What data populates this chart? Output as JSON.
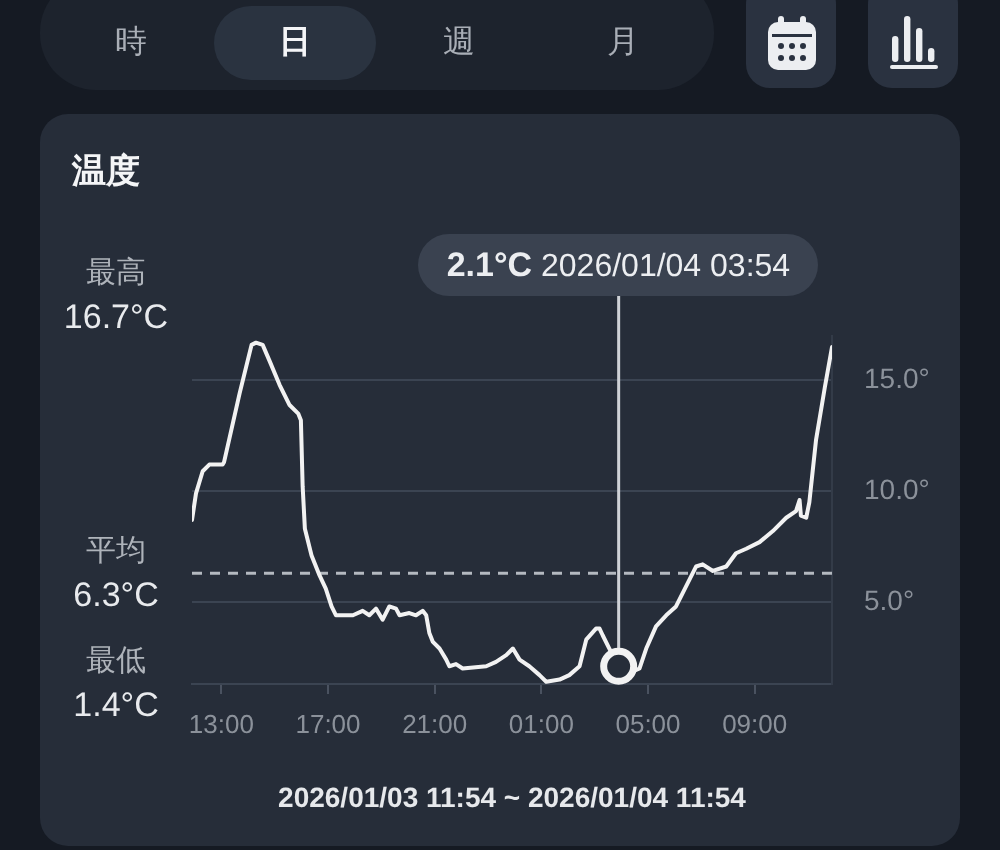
{
  "chart_data": {
    "type": "line",
    "title": "温度",
    "xlabel": "2026/01/03 11:54 ~ 2026/01/04 11:54",
    "x": [
      "2026-01-03T11:54",
      "2026-01-03T12:03",
      "2026-01-03T12:18",
      "2026-01-03T12:33",
      "2026-01-03T13:03",
      "2026-01-03T13:06",
      "2026-01-03T13:41",
      "2026-01-03T14:08",
      "2026-01-03T14:18",
      "2026-01-03T14:33",
      "2026-01-03T14:48",
      "2026-01-03T15:11",
      "2026-01-03T15:33",
      "2026-01-03T15:53",
      "2026-01-03T15:59",
      "2026-01-03T16:03",
      "2026-01-03T16:08",
      "2026-01-03T16:23",
      "2026-01-03T16:41",
      "2026-01-03T16:55",
      "2026-01-03T17:08",
      "2026-01-03T17:18",
      "2026-01-03T17:56",
      "2026-01-03T18:18",
      "2026-01-03T18:33",
      "2026-01-03T18:48",
      "2026-01-03T19:03",
      "2026-01-03T19:18",
      "2026-01-03T19:33",
      "2026-01-03T19:41",
      "2026-01-03T20:03",
      "2026-01-03T20:18",
      "2026-01-03T20:33",
      "2026-01-03T20:41",
      "2026-01-03T20:48",
      "2026-01-03T20:56",
      "2026-01-03T21:11",
      "2026-01-03T21:26",
      "2026-01-03T21:33",
      "2026-01-03T21:48",
      "2026-01-03T22:03",
      "2026-01-03T22:56",
      "2026-01-03T23:18",
      "2026-01-03T23:41",
      "2026-01-03T23:56",
      "2026-01-04T00:11",
      "2026-01-04T00:33",
      "2026-01-04T00:56",
      "2026-01-04T01:11",
      "2026-01-04T01:41",
      "2026-01-04T02:03",
      "2026-01-04T02:26",
      "2026-01-04T02:41",
      "2026-01-04T03:03",
      "2026-01-04T03:11",
      "2026-01-04T03:18",
      "2026-01-04T03:33",
      "2026-01-04T03:54",
      "2026-01-04T04:18",
      "2026-01-04T04:41",
      "2026-01-04T04:56",
      "2026-01-04T05:18",
      "2026-01-04T05:41",
      "2026-01-04T06:03",
      "2026-01-04T06:18",
      "2026-01-04T06:33",
      "2026-01-04T06:48",
      "2026-01-04T07:03",
      "2026-01-04T07:26",
      "2026-01-04T07:56",
      "2026-01-04T08:18",
      "2026-01-04T08:41",
      "2026-01-04T09:11",
      "2026-01-04T09:41",
      "2026-01-04T10:11",
      "2026-01-04T10:33",
      "2026-01-04T10:41",
      "2026-01-04T10:44",
      "2026-01-04T10:56",
      "2026-01-04T11:03",
      "2026-01-04T11:18",
      "2026-01-04T11:38",
      "2026-01-04T11:54"
    ],
    "values": [
      8.7,
      9.9,
      10.9,
      11.2,
      11.2,
      11.3,
      14.4,
      16.6,
      16.7,
      16.6,
      15.9,
      14.8,
      13.9,
      13.5,
      13.2,
      10.2,
      8.3,
      7.1,
      6.2,
      5.6,
      4.8,
      4.4,
      4.4,
      4.6,
      4.4,
      4.7,
      4.2,
      4.8,
      4.7,
      4.4,
      4.5,
      4.4,
      4.6,
      4.4,
      3.6,
      3.2,
      2.9,
      2.4,
      2.1,
      2.2,
      2.0,
      2.1,
      2.3,
      2.6,
      2.9,
      2.4,
      2.1,
      1.7,
      1.4,
      1.5,
      1.7,
      2.1,
      3.3,
      3.8,
      3.8,
      3.5,
      2.9,
      2.1,
      1.8,
      2.0,
      2.9,
      3.9,
      4.4,
      4.8,
      5.4,
      6.0,
      6.6,
      6.7,
      6.4,
      6.6,
      7.2,
      7.4,
      7.7,
      8.2,
      8.8,
      9.1,
      9.6,
      8.9,
      8.8,
      9.5,
      12.3,
      14.7,
      16.5
    ],
    "color": "#f2f2f2",
    "xlim": [
      "2026-01-03T11:54",
      "2026-01-04T11:54"
    ],
    "xticks": [
      {
        "value": "2026-01-03T13:00",
        "label": "13:00"
      },
      {
        "value": "2026-01-03T17:00",
        "label": "17:00"
      },
      {
        "value": "2026-01-03T21:00",
        "label": "21:00"
      },
      {
        "value": "2026-01-04T01:00",
        "label": "01:00"
      },
      {
        "value": "2026-01-04T05:00",
        "label": "05:00"
      },
      {
        "value": "2026-01-04T09:00",
        "label": "09:00"
      }
    ],
    "ylim": [
      1.3,
      17.0
    ],
    "yticks": [
      {
        "value": 5,
        "label": "5.0°"
      },
      {
        "value": 10,
        "label": "10.0°"
      },
      {
        "value": 15,
        "label": "15.0°"
      }
    ],
    "grid": "y",
    "ref_lines": [
      {
        "axis": "y",
        "value": 6.3,
        "label": "平均 6.3°C",
        "line_style": "dashed",
        "color": "#b4b9c0"
      }
    ],
    "annotations": [
      "時",
      "日",
      "週",
      "月",
      "最高 16.7°C",
      "最低 1.4°C",
      {
        "text": "2.1°C 2026/01/04 03:54",
        "x": "2026-01-04T03:54",
        "y": 2.1
      }
    ]
  }
}
